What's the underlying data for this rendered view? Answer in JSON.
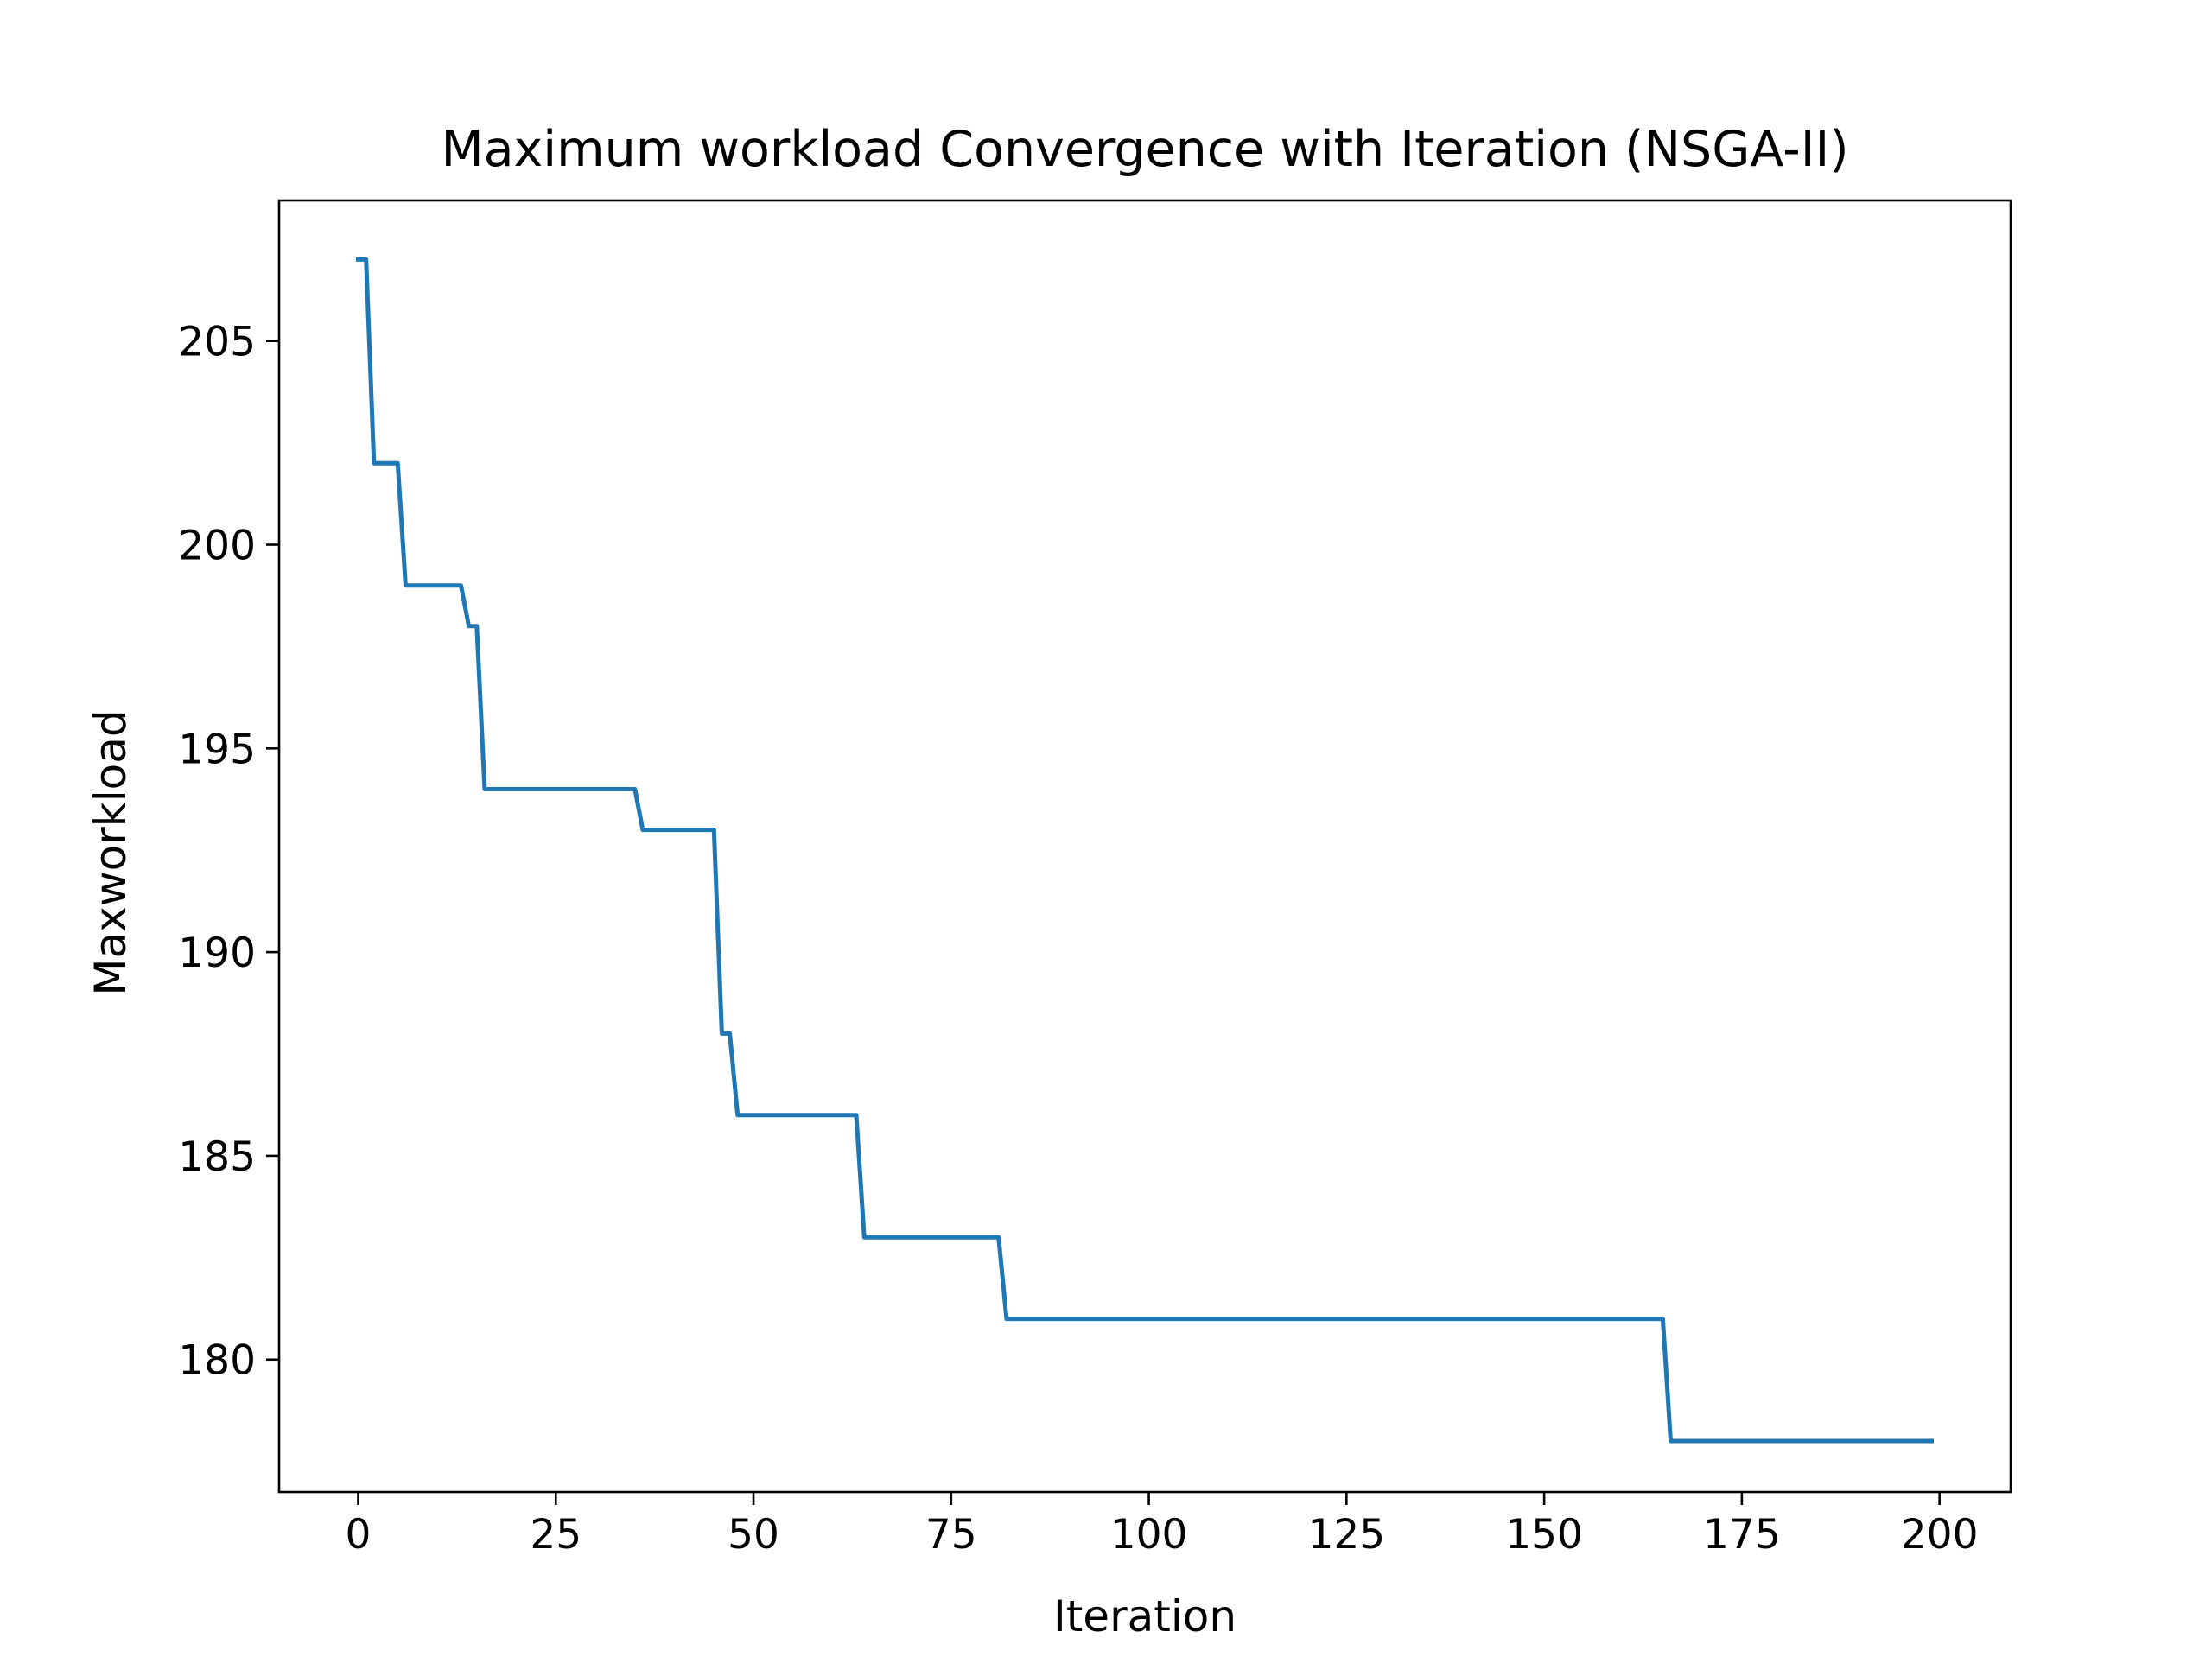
{
  "chart_data": {
    "type": "line",
    "title": "Maximum workload Convergence with Iteration (NSGA-II)",
    "xlabel": "Iteration",
    "ylabel": "Maxworkload",
    "xlim": [
      -10,
      209
    ],
    "ylim": [
      176.75,
      208.45
    ],
    "xticks": [
      0,
      25,
      50,
      75,
      100,
      125,
      150,
      175,
      200
    ],
    "xtick_labels": [
      "0",
      "25",
      "50",
      "75",
      "100",
      "125",
      "150",
      "175",
      "200"
    ],
    "yticks": [
      180,
      185,
      190,
      195,
      200,
      205
    ],
    "ytick_labels": [
      "180",
      "185",
      "190",
      "195",
      "200",
      "205"
    ],
    "grid": false,
    "legend": "none",
    "series_color": "#1f77b4",
    "series": [
      {
        "x": [
          0,
          1,
          2,
          5,
          6,
          13,
          14,
          15,
          16,
          35,
          36,
          45,
          46,
          47,
          48,
          63,
          64,
          81,
          82,
          165,
          166,
          199
        ],
        "y": [
          207,
          207,
          202,
          202,
          199,
          199,
          198,
          198,
          194,
          194,
          193,
          193,
          188,
          188,
          186,
          186,
          183,
          183,
          181,
          181,
          178,
          178
        ]
      }
    ]
  }
}
